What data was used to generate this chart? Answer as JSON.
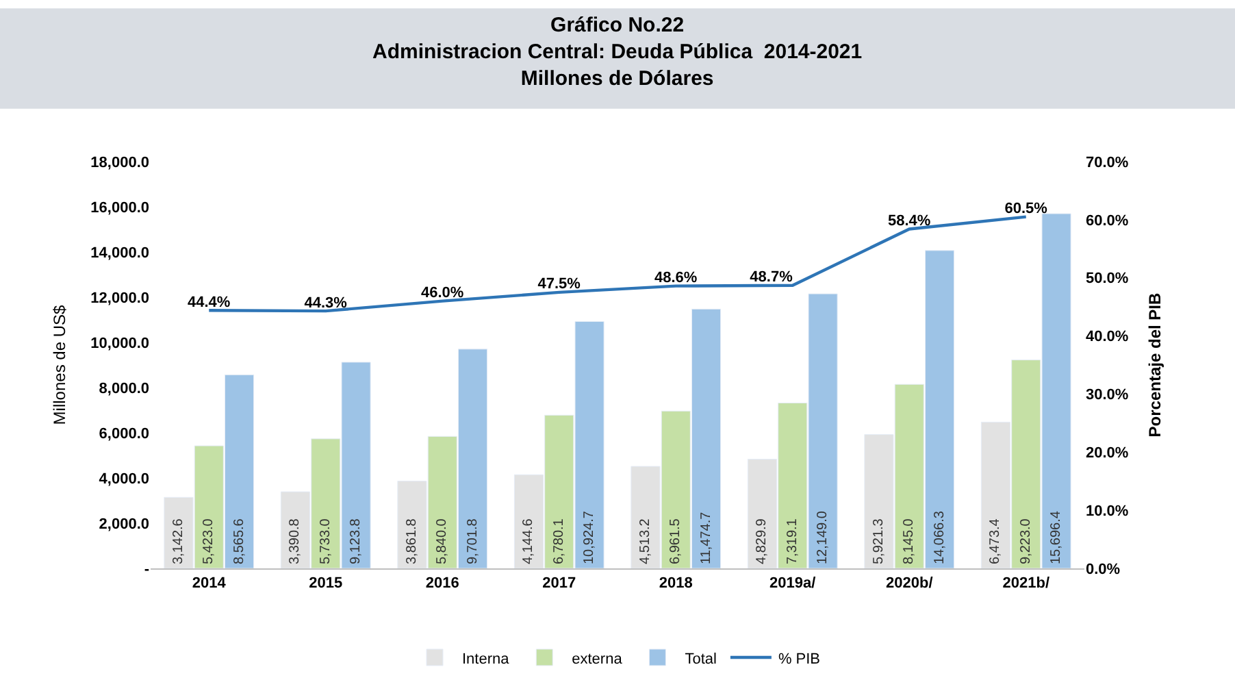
{
  "chart_data": {
    "type": "bar",
    "title": "Gráfico No.22",
    "subtitle": "Administracion Central: Deuda Pública  2014-2021\nMillones de Dólares",
    "ylabel": "Millones de US$",
    "y2label": "Porcentaje del PIB",
    "categories": [
      "2014",
      "2015",
      "2016",
      "2017",
      "2018",
      "2019a/",
      "2020b/",
      "2021b/"
    ],
    "series": [
      {
        "name": "Interna",
        "color": "#e2e2e2",
        "values": [
          3142.6,
          3390.8,
          3861.8,
          4144.6,
          4513.2,
          4829.9,
          5921.3,
          6473.4
        ],
        "value_labels": [
          "3,142.6",
          "3,390.8",
          "3,861.8",
          "4,144.6",
          "4,513.2",
          "4,829.9",
          "5,921.3",
          "6,473.4"
        ]
      },
      {
        "name": "externa",
        "color": "#c5e0a5",
        "values": [
          5423.0,
          5733.0,
          5840.0,
          6780.1,
          6961.5,
          7319.1,
          8145.0,
          9223.0
        ],
        "value_labels": [
          "5,423.0",
          "5,733.0",
          "5,840.0",
          "6,780.1",
          "6,961.5",
          "7,319.1",
          "8,145.0",
          "9,223.0"
        ]
      },
      {
        "name": "Total",
        "color": "#9dc3e6",
        "values": [
          8565.6,
          9123.8,
          9701.8,
          10924.7,
          11474.7,
          12149.0,
          14066.3,
          15696.4
        ],
        "value_labels": [
          "8,565.6",
          "9,123.8",
          "9,701.8",
          "10,924.7",
          "11,474.7",
          "12,149.0",
          "14,066.3",
          "15,696.4"
        ]
      },
      {
        "name": "% PIB",
        "type": "line",
        "axis": "y2",
        "color": "#2e75b6",
        "values": [
          44.4,
          44.3,
          46.0,
          47.5,
          48.6,
          48.7,
          58.4,
          60.5
        ],
        "value_labels": [
          "44.4%",
          "44.3%",
          "46.0%",
          "47.5%",
          "48.6%",
          "48.7%",
          "58.4%",
          "60.5%"
        ]
      }
    ],
    "ylim": [
      0,
      18000
    ],
    "yticks": [
      {
        "value": 0,
        "label": "-"
      },
      {
        "value": 2000,
        "label": "2,000.0"
      },
      {
        "value": 4000,
        "label": "4,000.0"
      },
      {
        "value": 6000,
        "label": "6,000.0"
      },
      {
        "value": 8000,
        "label": "8,000.0"
      },
      {
        "value": 10000,
        "label": "10,000.0"
      },
      {
        "value": 12000,
        "label": "12,000.0"
      },
      {
        "value": 14000,
        "label": "14,000.0"
      },
      {
        "value": 16000,
        "label": "16,000.0"
      },
      {
        "value": 18000,
        "label": "18,000.0"
      }
    ],
    "y2lim": [
      0,
      70
    ],
    "y2ticks": [
      {
        "value": 0,
        "label": "0.0%"
      },
      {
        "value": 10,
        "label": "10.0%"
      },
      {
        "value": 20,
        "label": "20.0%"
      },
      {
        "value": 30,
        "label": "30.0%"
      },
      {
        "value": 40,
        "label": "40.0%"
      },
      {
        "value": 50,
        "label": "50.0%"
      },
      {
        "value": 60,
        "label": "60.0%"
      },
      {
        "value": 70,
        "label": "70.0%"
      }
    ],
    "legend": "bottom",
    "marker": "none",
    "line_style": "solid"
  }
}
